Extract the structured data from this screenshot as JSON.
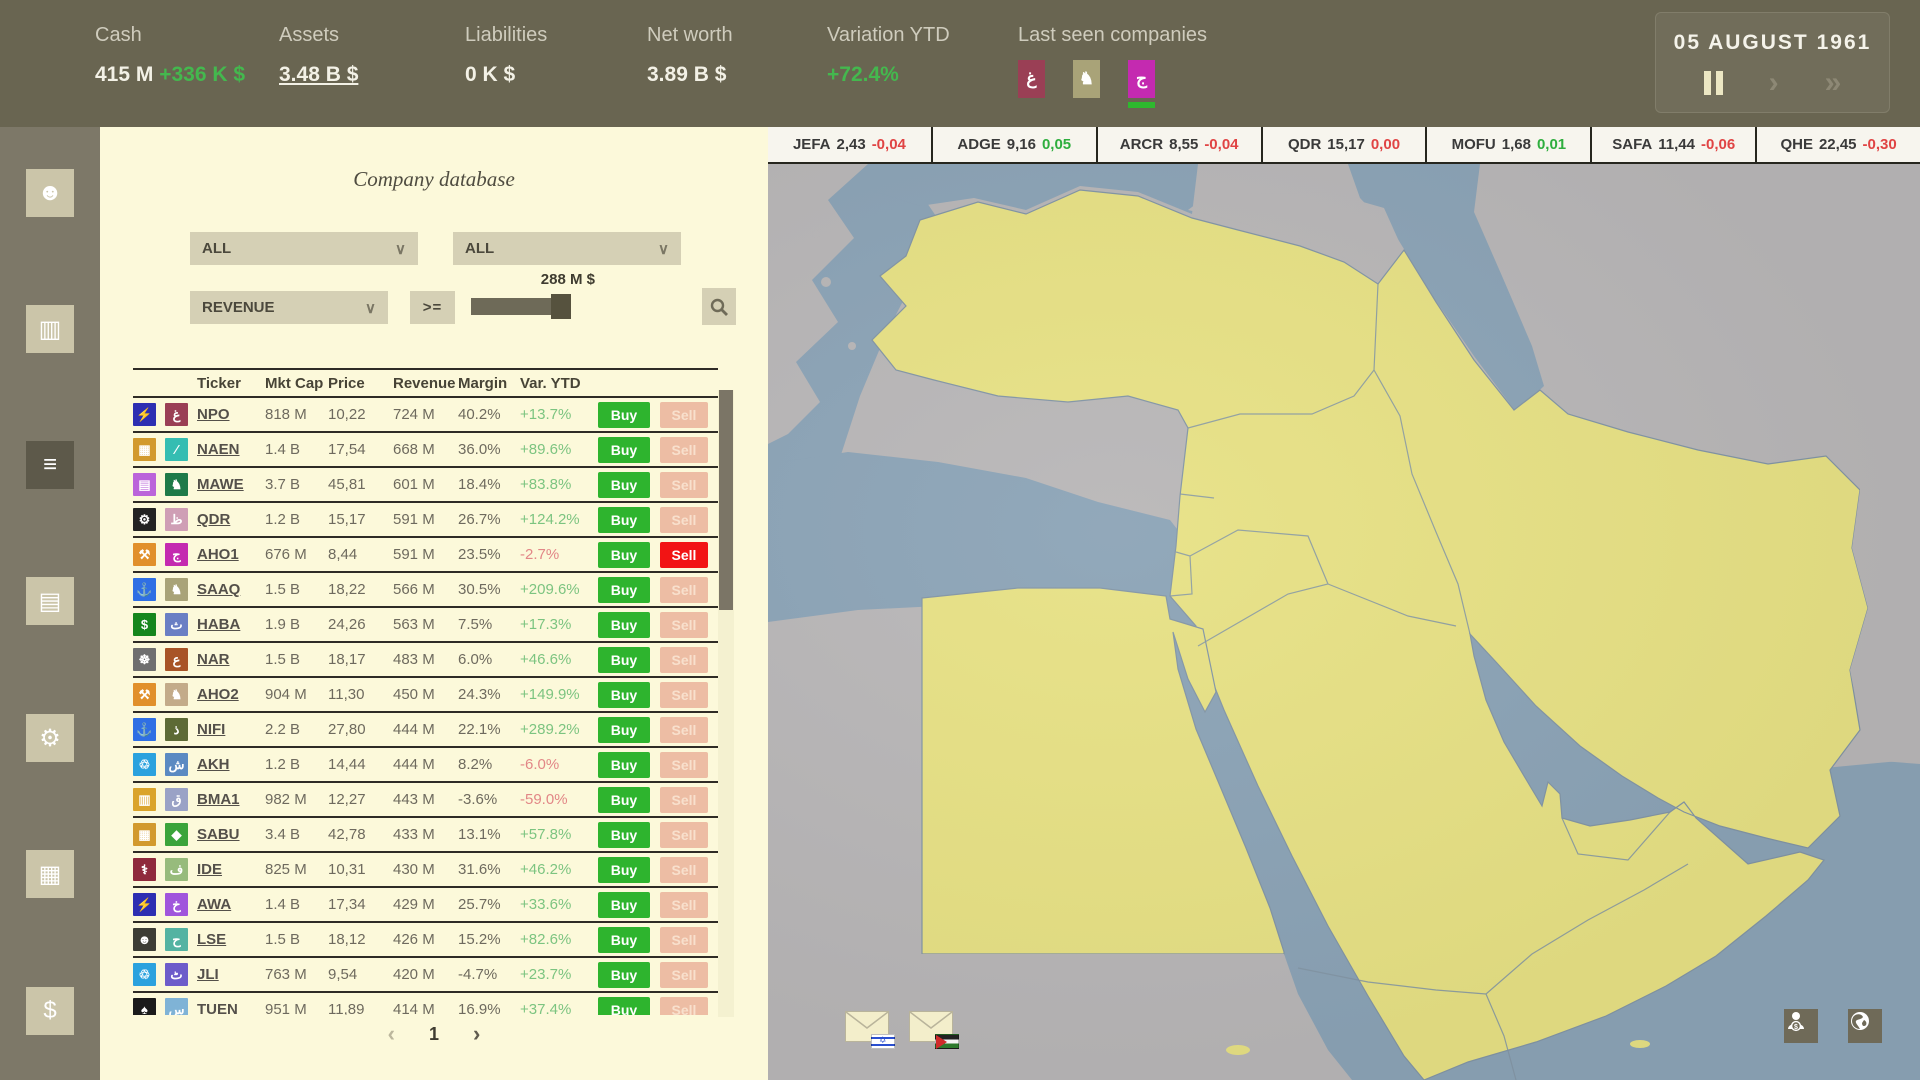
{
  "top_bar": {
    "stats": [
      {
        "label": "Cash",
        "value": "415 M",
        "delta": "+336 K $",
        "underlined": false,
        "green": false
      },
      {
        "label": "Assets",
        "value": "3.48 B $",
        "delta": "",
        "underlined": true,
        "green": false
      },
      {
        "label": "Liabilities",
        "value": "0 K $",
        "delta": "",
        "underlined": false,
        "green": false
      },
      {
        "label": "Net worth",
        "value": "3.89 B $",
        "delta": "",
        "underlined": false,
        "green": false
      },
      {
        "label": "Variation YTD",
        "value": "+72.4%",
        "delta": "",
        "underlined": false,
        "green": true
      }
    ],
    "last_seen": {
      "label": "Last seen companies",
      "companies": [
        {
          "icon": "arabic-ghain",
          "glyph": "غ",
          "color": "#9a3f55",
          "active": false
        },
        {
          "icon": "lion",
          "glyph": "♞",
          "color": "#a9a378",
          "active": false
        },
        {
          "icon": "arabic-jeem",
          "glyph": "ج",
          "color": "#c42ab0",
          "active": true
        }
      ]
    },
    "date": {
      "value": "05 AUGUST 1961",
      "play_glyph": "›",
      "ffwd_glyph": "»"
    }
  },
  "ticker": [
    {
      "symbol": "JEFA",
      "price": "2,43",
      "change": "-0,04",
      "dir": "down"
    },
    {
      "symbol": "ADGE",
      "price": "9,16",
      "change": "0,05",
      "dir": "up"
    },
    {
      "symbol": "ARCR",
      "price": "8,55",
      "change": "-0,04",
      "dir": "down"
    },
    {
      "symbol": "QDR",
      "price": "15,17",
      "change": "0,00",
      "dir": "down"
    },
    {
      "symbol": "MOFU",
      "price": "1,68",
      "change": "0,01",
      "dir": "up"
    },
    {
      "symbol": "SAFA",
      "price": "11,44",
      "change": "-0,06",
      "dir": "down"
    },
    {
      "symbol": "QHE",
      "price": "22,45",
      "change": "-0,30",
      "dir": "down"
    }
  ],
  "sidebar": {
    "items": [
      {
        "icon": "profile",
        "glyph": "☻",
        "active": false
      },
      {
        "icon": "passport",
        "glyph": "▥",
        "active": false
      },
      {
        "icon": "database",
        "glyph": "≡",
        "active": true
      },
      {
        "icon": "news-documents",
        "glyph": "▤",
        "active": false
      },
      {
        "icon": "industry-gears",
        "glyph": "⚙",
        "active": false
      },
      {
        "icon": "company-building",
        "glyph": "▦",
        "active": false
      },
      {
        "icon": "finance-money",
        "glyph": "$",
        "active": false
      }
    ]
  },
  "panel": {
    "title": "Company database",
    "filters": {
      "industry": "ALL",
      "country": "ALL",
      "metric": "REVENUE",
      "operator": ">=",
      "slider_value": "288 M $",
      "chevron": "∨"
    },
    "table": {
      "headers": {
        "ticker": "Ticker",
        "mktcap": "Mkt Cap",
        "price": "Price",
        "revenue": "Revenue",
        "margin": "Margin",
        "var": "Var. YTD"
      },
      "buy_label": "Buy",
      "sell_label": "Sell",
      "rows": [
        {
          "ind": {
            "icon": "lightning",
            "glyph": "⚡",
            "color": "#2d2fb2"
          },
          "flag": {
            "icon": "arabic-ghain",
            "glyph": "غ",
            "color": "#9a3f55"
          },
          "ticker": "NPO",
          "mktcap": "818 M",
          "price": "10,22",
          "revenue": "724 M",
          "margin": "40.2%",
          "var": "+13.7%",
          "sell_active": false
        },
        {
          "ind": {
            "icon": "construction",
            "glyph": "▦",
            "color": "#d29a2e"
          },
          "flag": {
            "icon": "needle",
            "glyph": "∕",
            "color": "#35bdb2"
          },
          "ticker": "NAEN",
          "mktcap": "1.4 B",
          "price": "17,54",
          "revenue": "668 M",
          "margin": "36.0%",
          "var": "+89.6%",
          "sell_active": false
        },
        {
          "ind": {
            "icon": "documents",
            "glyph": "▤",
            "color": "#bb64da"
          },
          "flag": {
            "icon": "bear",
            "glyph": "♞",
            "color": "#1e7a48"
          },
          "ticker": "MAWE",
          "mktcap": "3.7 B",
          "price": "45,81",
          "revenue": "601 M",
          "margin": "18.4%",
          "var": "+83.8%",
          "sell_active": false
        },
        {
          "ind": {
            "icon": "car",
            "glyph": "⚙",
            "color": "#232323"
          },
          "flag": {
            "icon": "arabic-zah",
            "glyph": "ظ",
            "color": "#cf9eb5"
          },
          "ticker": "QDR",
          "mktcap": "1.2 B",
          "price": "15,17",
          "revenue": "591 M",
          "margin": "26.7%",
          "var": "+124.2%",
          "sell_active": false
        },
        {
          "ind": {
            "icon": "oil-derrick",
            "glyph": "⚒",
            "color": "#e1902b"
          },
          "flag": {
            "icon": "arabic-jeem",
            "glyph": "ج",
            "color": "#c42ab0"
          },
          "ticker": "AHO1",
          "mktcap": "676 M",
          "price": "8,44",
          "revenue": "591 M",
          "margin": "23.5%",
          "var": "-2.7%",
          "sell_active": true
        },
        {
          "ind": {
            "icon": "ship",
            "glyph": "⚓",
            "color": "#2f6fe4"
          },
          "flag": {
            "icon": "lion",
            "glyph": "♞",
            "color": "#a9a378"
          },
          "ticker": "SAAQ",
          "mktcap": "1.5 B",
          "price": "18,22",
          "revenue": "566 M",
          "margin": "30.5%",
          "var": "+209.6%",
          "sell_active": false
        },
        {
          "ind": {
            "icon": "money",
            "glyph": "$",
            "color": "#15861c"
          },
          "flag": {
            "icon": "arabic-theh",
            "glyph": "ث",
            "color": "#6a7fc4"
          },
          "ticker": "HABA",
          "mktcap": "1.9 B",
          "price": "24,26",
          "revenue": "563 M",
          "margin": "7.5%",
          "var": "+17.3%",
          "sell_active": false
        },
        {
          "ind": {
            "icon": "boat",
            "glyph": "☸",
            "color": "#6f6f6f"
          },
          "flag": {
            "icon": "arabic-ain",
            "glyph": "ع",
            "color": "#a85427"
          },
          "ticker": "NAR",
          "mktcap": "1.5 B",
          "price": "18,17",
          "revenue": "483 M",
          "margin": "6.0%",
          "var": "+46.6%",
          "sell_active": false
        },
        {
          "ind": {
            "icon": "oil-derrick",
            "glyph": "⚒",
            "color": "#e1902b"
          },
          "flag": {
            "icon": "bear",
            "glyph": "♞",
            "color": "#c3ab89"
          },
          "ticker": "AHO2",
          "mktcap": "904 M",
          "price": "11,30",
          "revenue": "450 M",
          "margin": "24.3%",
          "var": "+149.9%",
          "sell_active": false
        },
        {
          "ind": {
            "icon": "ship",
            "glyph": "⚓",
            "color": "#2f6fe4"
          },
          "flag": {
            "icon": "arabic-thal",
            "glyph": "ذ",
            "color": "#5d6a35"
          },
          "ticker": "NIFI",
          "mktcap": "2.2 B",
          "price": "27,80",
          "revenue": "444 M",
          "margin": "22.1%",
          "var": "+289.2%",
          "sell_active": false
        },
        {
          "ind": {
            "icon": "trash",
            "glyph": "♲",
            "color": "#2ba2de"
          },
          "flag": {
            "icon": "arabic-sheen",
            "glyph": "ش",
            "color": "#5b8ac2"
          },
          "ticker": "AKH",
          "mktcap": "1.2 B",
          "price": "14,44",
          "revenue": "444 M",
          "margin": "8.2%",
          "var": "-6.0%",
          "sell_active": false
        },
        {
          "ind": {
            "icon": "truck",
            "glyph": "▥",
            "color": "#daa42b"
          },
          "flag": {
            "icon": "arabic-qaf",
            "glyph": "ق",
            "color": "#9aa2c6"
          },
          "ticker": "BMA1",
          "mktcap": "982 M",
          "price": "12,27",
          "revenue": "443 M",
          "margin": "-3.6%",
          "var": "-59.0%",
          "sell_active": false
        },
        {
          "ind": {
            "icon": "construction",
            "glyph": "▦",
            "color": "#d29a2e"
          },
          "flag": {
            "icon": "gem",
            "glyph": "◆",
            "color": "#3ba43b"
          },
          "ticker": "SABU",
          "mktcap": "3.4 B",
          "price": "42,78",
          "revenue": "433 M",
          "margin": "13.1%",
          "var": "+57.8%",
          "sell_active": false
        },
        {
          "ind": {
            "icon": "pills",
            "glyph": "⚕",
            "color": "#8f2a3c"
          },
          "flag": {
            "icon": "arabic-feh",
            "glyph": "ف",
            "color": "#97bb7c"
          },
          "ticker": "IDE",
          "mktcap": "825 M",
          "price": "10,31",
          "revenue": "430 M",
          "margin": "31.6%",
          "var": "+46.2%",
          "sell_active": false
        },
        {
          "ind": {
            "icon": "lightning",
            "glyph": "⚡",
            "color": "#2d2fb2"
          },
          "flag": {
            "icon": "arabic-khah",
            "glyph": "خ",
            "color": "#a055dc"
          },
          "ticker": "AWA",
          "mktcap": "1.4 B",
          "price": "17,34",
          "revenue": "429 M",
          "margin": "25.7%",
          "var": "+33.6%",
          "sell_active": false
        },
        {
          "ind": {
            "icon": "person",
            "glyph": "☻",
            "color": "#3d3d35"
          },
          "flag": {
            "icon": "arabic-hah",
            "glyph": "ح",
            "color": "#54b3a2"
          },
          "ticker": "LSE",
          "mktcap": "1.5 B",
          "price": "18,12",
          "revenue": "426 M",
          "margin": "15.2%",
          "var": "+82.6%",
          "sell_active": false
        },
        {
          "ind": {
            "icon": "trash",
            "glyph": "♲",
            "color": "#2ba2de"
          },
          "flag": {
            "icon": "arabic-tteh",
            "glyph": "ٹ",
            "color": "#6d5cca"
          },
          "ticker": "JLI",
          "mktcap": "763 M",
          "price": "9,54",
          "revenue": "420 M",
          "margin": "-4.7%",
          "var": "+23.7%",
          "sell_active": false
        },
        {
          "ind": {
            "icon": "boot",
            "glyph": "♠",
            "color": "#1b1b1b"
          },
          "flag": {
            "icon": "arabic-seen",
            "glyph": "س",
            "color": "#7fb3d6"
          },
          "ticker": "TUEN",
          "mktcap": "951 M",
          "price": "11,89",
          "revenue": "414 M",
          "margin": "16.9%",
          "var": "+37.4%",
          "sell_active": false
        }
      ]
    },
    "pagination": {
      "prev": "‹",
      "page": "1",
      "next": "›"
    }
  },
  "map": {
    "messages": [
      {
        "flag": "israel"
      },
      {
        "flag": "jordan"
      }
    ],
    "corner_buttons": [
      {
        "icon": "banker"
      },
      {
        "icon": "globe"
      }
    ],
    "colors": {
      "sea": "#8ba3b6",
      "land": "#e7e184",
      "neutral": "#b8b6b7"
    }
  }
}
